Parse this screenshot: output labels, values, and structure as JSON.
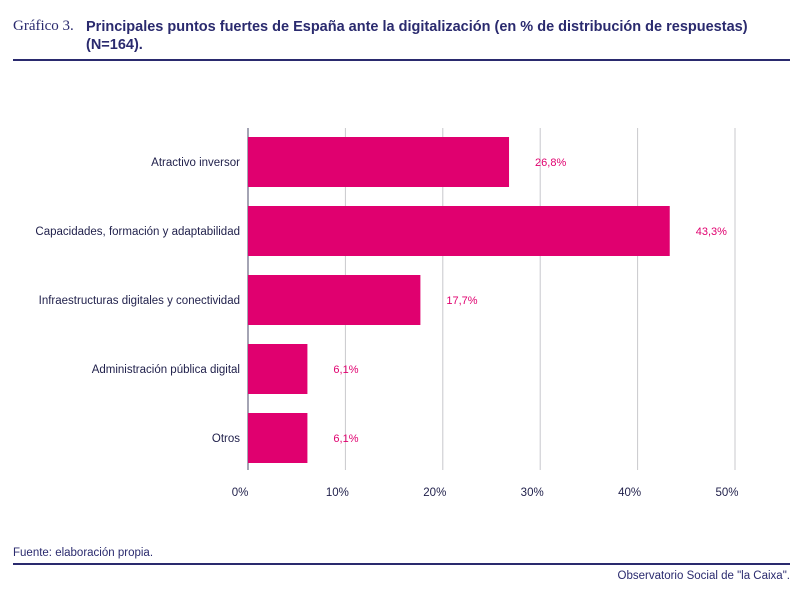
{
  "header": {
    "graf_label": "Gráfico 3.",
    "title": "Principales puntos fuertes de España ante la digitalización (en % de distribución de respuestas) (N=164)."
  },
  "chart_data": {
    "type": "bar",
    "orientation": "horizontal",
    "categories": [
      "Atractivo inversor",
      "Capacidades, formación y adaptabilidad",
      "Infraestructuras digitales y conectividad",
      "Administración pública digital",
      "Otros"
    ],
    "values": [
      26.8,
      43.3,
      17.7,
      6.1,
      6.1
    ],
    "value_labels": [
      "26,8%",
      "43,3%",
      "17,7%",
      "6,1%",
      "6,1%"
    ],
    "xlim": [
      0,
      50
    ],
    "xticks": [
      0,
      10,
      20,
      30,
      40,
      50
    ],
    "xtick_labels": [
      "0%",
      "10%",
      "20%",
      "30%",
      "40%",
      "50%"
    ],
    "grid": true,
    "bar_color": "#e0006f"
  },
  "footer": {
    "source": "Fuente: elaboración propia.",
    "publisher": "Observatorio Social de \"la Caixa\"."
  }
}
